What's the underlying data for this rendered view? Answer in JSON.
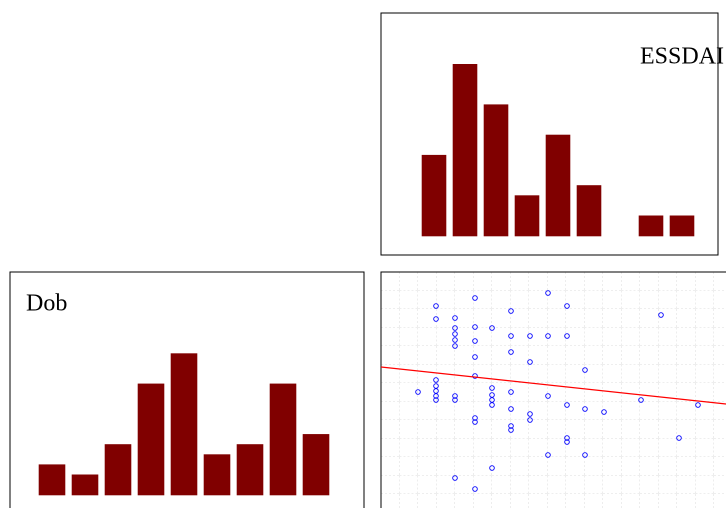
{
  "chart_data": [
    {
      "type": "bar",
      "title": "ESSDAI",
      "values": [
        8,
        17,
        13,
        4,
        10,
        5,
        0,
        2,
        2
      ],
      "color": "#800000"
    },
    {
      "type": "bar",
      "title": "Dob",
      "values": [
        3,
        2,
        5,
        11,
        14,
        4,
        5,
        11,
        6
      ],
      "color": "#800000"
    },
    {
      "type": "scatter",
      "color": "#0000ff",
      "line_color": "#ff0000",
      "grid": true,
      "xlim": [
        0,
        34.5
      ],
      "ylim": [
        0,
        23.6
      ],
      "x": [
        5.5,
        9.4,
        16.7,
        5.5,
        7.4,
        9.4,
        11.1,
        13.0,
        18.6,
        28.0,
        7.4,
        7.4,
        7.4,
        7.4,
        9.4,
        13.0,
        14.9,
        16.7,
        18.6,
        9.4,
        13.0,
        14.9,
        20.4,
        5.5,
        9.4,
        5.5,
        3.7,
        5.5,
        5.5,
        5.5,
        7.4,
        7.4,
        11.1,
        11.1,
        11.1,
        11.1,
        13.0,
        16.7,
        13.0,
        18.6,
        20.4,
        22.3,
        26.0,
        31.7,
        9.4,
        9.4,
        14.9,
        14.9,
        13.0,
        13.0,
        18.6,
        18.6,
        16.7,
        20.4,
        29.8,
        11.1,
        7.4,
        9.4
      ],
      "y": [
        20.2,
        21.0,
        21.5,
        18.9,
        19.0,
        18.1,
        18.0,
        19.7,
        20.2,
        19.3,
        18.0,
        17.4,
        16.8,
        16.2,
        16.7,
        17.2,
        17.2,
        17.2,
        17.2,
        15.1,
        15.6,
        14.6,
        13.8,
        12.8,
        13.2,
        12.2,
        11.6,
        11.7,
        11.2,
        10.8,
        11.2,
        10.8,
        12.0,
        11.3,
        10.8,
        10.3,
        11.6,
        11.2,
        9.9,
        10.3,
        9.9,
        9.6,
        10.8,
        10.3,
        9.0,
        8.6,
        9.4,
        8.8,
        8.2,
        7.8,
        7.0,
        6.6,
        5.3,
        5.3,
        7.0,
        4.0,
        3.0,
        1.9
      ],
      "fit": {
        "x": [
          0,
          34.5
        ],
        "y": [
          14.1,
          10.4
        ]
      }
    }
  ]
}
